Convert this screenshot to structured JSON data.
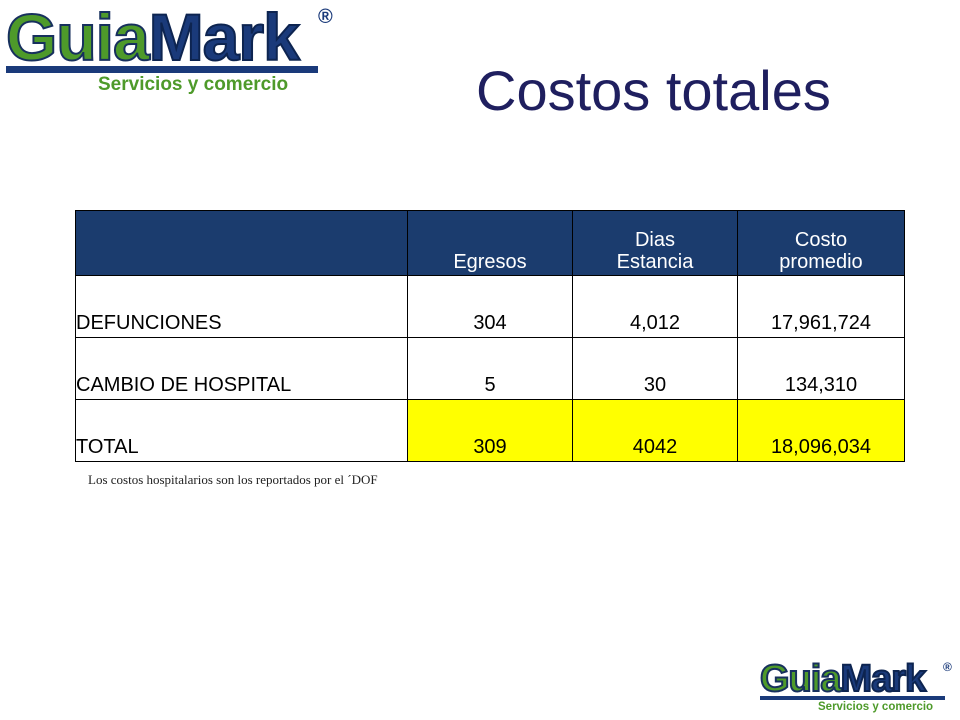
{
  "logo": {
    "word_part1": "Guia",
    "word_part2": "Mark",
    "registered": "®",
    "tagline": "Servicios y comercio"
  },
  "slide": {
    "title": "Costos totales"
  },
  "table": {
    "headers": [
      "",
      "Egresos",
      "Dias Estancia",
      "Costo promedio"
    ],
    "rows": [
      {
        "label": "DEFUNCIONES",
        "egresos": "304",
        "dias": "4,012",
        "costo": "17,961,724"
      },
      {
        "label": "CAMBIO DE HOSPITAL",
        "egresos": "5",
        "dias": "30",
        "costo": "134,310"
      },
      {
        "label": "TOTAL",
        "egresos": "309",
        "dias": "4042",
        "costo": "18,096,034"
      }
    ],
    "colors": {
      "header_bg": "#1b3c6e",
      "total_highlight": "#ffff00"
    }
  },
  "footnote": "Los costos hospitalarios son los reportados por el ´DOF"
}
